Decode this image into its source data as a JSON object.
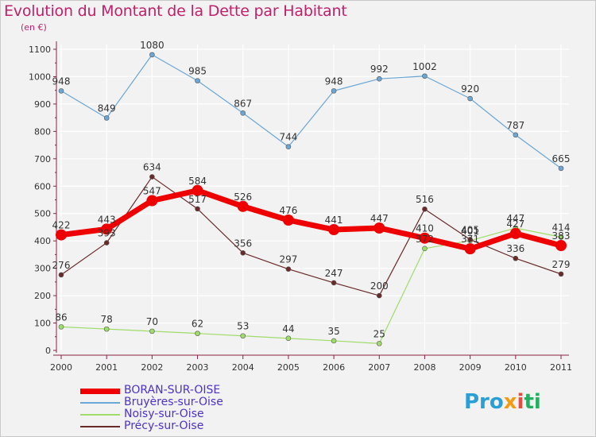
{
  "title": "Evolution du Montant de la Dette par Habitant",
  "subtitle": "(en €)",
  "brand": {
    "part1": "Pro",
    "part2": "x",
    "part3": "i",
    "part4": "ti"
  },
  "chart_data": {
    "type": "line",
    "x": [
      "2000",
      "2001",
      "2002",
      "2003",
      "2004",
      "2005",
      "2006",
      "2007",
      "2008",
      "2009",
      "2010",
      "2011"
    ],
    "ylim": [
      0,
      1100
    ],
    "yticks": [
      0,
      100,
      200,
      300,
      400,
      500,
      600,
      700,
      800,
      900,
      1000,
      1100
    ],
    "grid": true,
    "legend_position": "bottom-left",
    "series": [
      {
        "name": "BORAN-SUR-OISE",
        "color": "#ee0000",
        "width": 7,
        "marker": 7,
        "values": [
          422,
          443,
          547,
          584,
          526,
          476,
          441,
          447,
          410,
          371,
          427,
          383
        ],
        "labels": [
          "422",
          "443",
          "547",
          "584",
          "526",
          "476",
          "441",
          "447",
          "410",
          "371",
          "427",
          "383"
        ]
      },
      {
        "name": "Bruyères-sur-Oise",
        "color": "#6aa6d6",
        "width": 1.2,
        "marker": 3,
        "values": [
          948,
          849,
          1080,
          985,
          867,
          744,
          948,
          992,
          1002,
          920,
          787,
          665
        ],
        "labels": [
          "948",
          "849",
          "1080",
          "985",
          "867",
          "744",
          "948",
          "992",
          "1002",
          "920",
          "787",
          "665"
        ]
      },
      {
        "name": "Noisy-sur-Oise",
        "color": "#9fdc6a",
        "width": 1.2,
        "marker": 3,
        "values": [
          86,
          78,
          70,
          62,
          53,
          44,
          35,
          25,
          372,
          401,
          447,
          414
        ],
        "labels": [
          "86",
          "78",
          "70",
          "62",
          "53",
          "44",
          "35",
          "25",
          "372",
          "401",
          "447",
          "414"
        ]
      },
      {
        "name": "Précy-sur-Oise",
        "color": "#6b2a2a",
        "width": 1.2,
        "marker": 3,
        "values": [
          276,
          393,
          634,
          517,
          356,
          297,
          247,
          200,
          516,
          405,
          336,
          279
        ],
        "labels": [
          "276",
          "393",
          "634",
          "517",
          "356",
          "297",
          "247",
          "200",
          "516",
          "405",
          "336",
          "279"
        ]
      }
    ]
  }
}
